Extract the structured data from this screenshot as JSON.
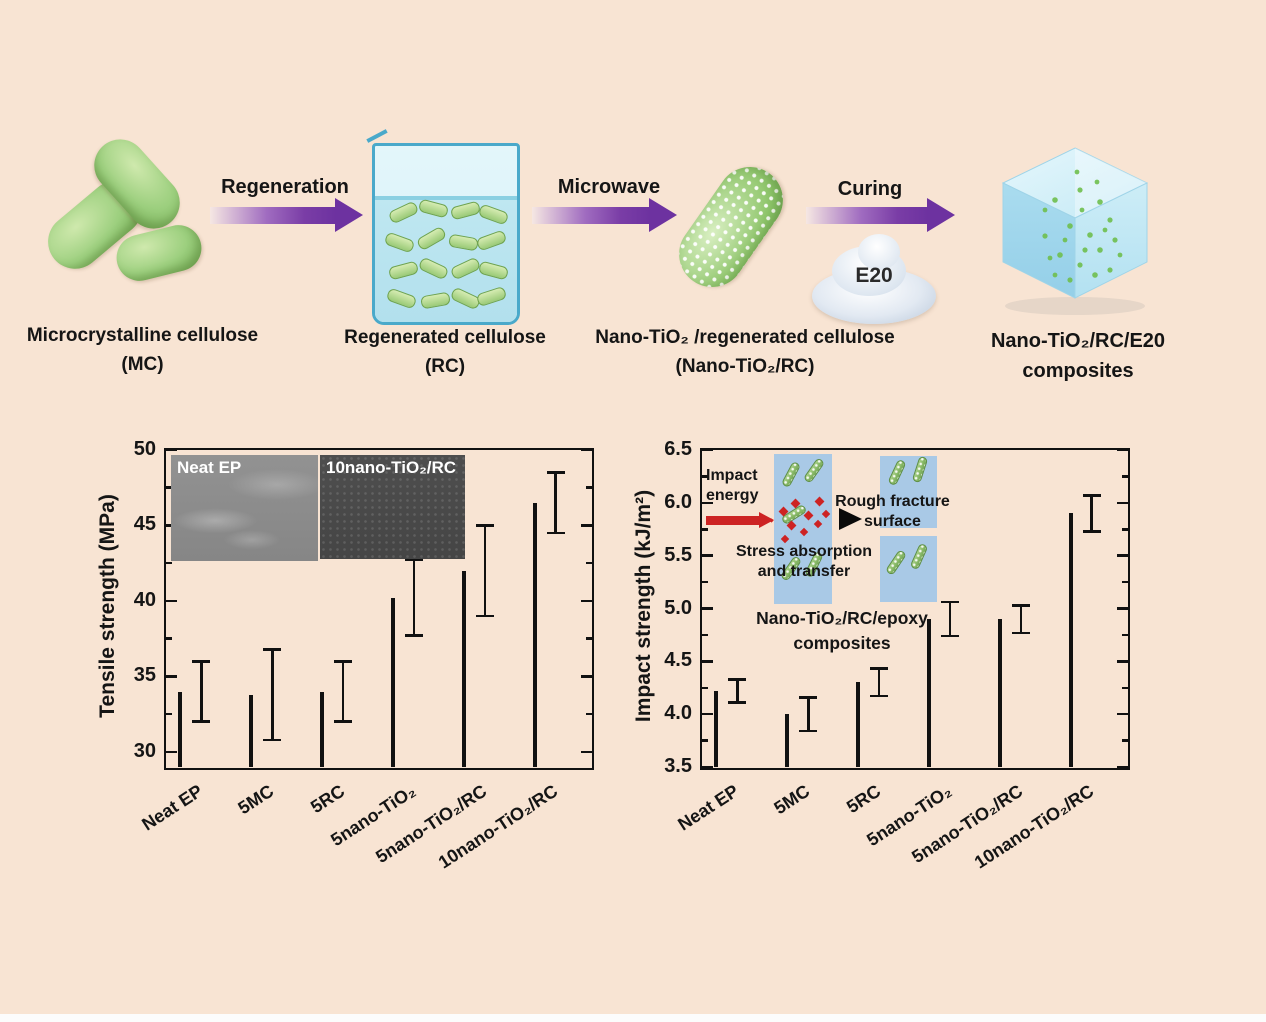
{
  "figure": {
    "background": "#f8e4d3",
    "flow": {
      "arrows": [
        {
          "label": "Regeneration"
        },
        {
          "label": "Microwave"
        },
        {
          "label": "Curing"
        }
      ],
      "steps": [
        {
          "caption": "Microcrystalline cellulose\n(MC)"
        },
        {
          "caption": "Regenerated cellulose\n(RC)"
        },
        {
          "caption": "Nano-TiO₂ /regenerated cellulose\n(Nano-TiO₂/RC)"
        },
        {
          "caption": "Nano-TiO₂/RC/E20\ncomposites"
        }
      ],
      "e20_label": "E20",
      "arrow_color": "#6d32a0",
      "capsule_color": "#8cc468",
      "beaker_color": "#4aa9ca"
    }
  },
  "chart_data": [
    {
      "type": "bar",
      "title": "",
      "xlabel": "",
      "ylabel": "Tensile strength (MPa)",
      "categories": [
        "Neat EP",
        "5MC",
        "5RC",
        "5nano-TiO₂",
        "5nano-TiO₂/RC",
        "10nano-TiO₂/RC"
      ],
      "values": [
        34.0,
        33.8,
        34.0,
        40.2,
        42.0,
        46.5
      ],
      "errors": [
        2.0,
        3.0,
        2.0,
        2.5,
        3.0,
        2.0
      ],
      "bar_colors": [
        "#000000",
        "#f0379a",
        "#04048c",
        "#f68a21",
        "#268c26",
        "#f2290f"
      ],
      "ylim": [
        29,
        50
      ],
      "yticks": [
        30,
        35,
        40,
        45,
        50
      ],
      "minor_step": 2.5,
      "grid": false,
      "legend": "none",
      "insets": {
        "left": "Neat EP",
        "right": "10nano-TiO₂/RC"
      }
    },
    {
      "type": "bar",
      "title": "",
      "xlabel": "",
      "ylabel": "Impact strength (kJ/m²)",
      "categories": [
        "Neat EP",
        "5MC",
        "5RC",
        "5nano-TiO₂",
        "5nano-TiO₂/RC",
        "10nano-TiO₂/RC"
      ],
      "values": [
        4.22,
        4.0,
        4.3,
        4.9,
        4.9,
        5.9
      ],
      "errors": [
        0.11,
        0.16,
        0.13,
        0.16,
        0.13,
        0.17
      ],
      "bar_colors": [
        "#000000",
        "#f0379a",
        "#04048c",
        "#f68a21",
        "#268c26",
        "#f2290f"
      ],
      "ylim": [
        3.5,
        6.5
      ],
      "yticks": [
        3.5,
        4.0,
        4.5,
        5.0,
        5.5,
        6.0,
        6.5
      ],
      "minor_step": 0.25,
      "grid": false,
      "legend": "none",
      "annotations": {
        "impact_energy": "Impact\nenergy",
        "stress": "Stress absorption\nand transfer",
        "rough": "Rough fracture\nsurface",
        "composites": "Nano-TiO₂/RC/epoxy\ncomposites"
      }
    }
  ]
}
